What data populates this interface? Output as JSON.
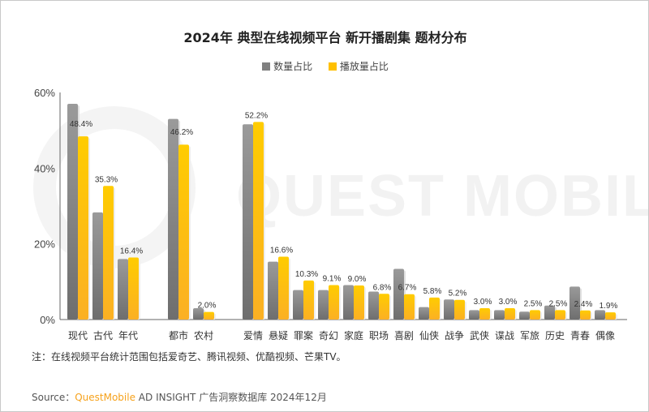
{
  "chart_data": {
    "type": "bar",
    "title": "2024年 典型在线视频平台 新开播剧集 题材分布",
    "ylim": [
      0,
      60
    ],
    "yticks": [
      "0%",
      "20%",
      "40%",
      "60%"
    ],
    "ytick_values": [
      0,
      20,
      40,
      60
    ],
    "legend_position": "top-center",
    "groups": [
      {
        "categories": [
          "现代",
          "古代",
          "年代"
        ]
      },
      {
        "categories": [
          "都市",
          "农村"
        ]
      },
      {
        "categories": [
          "爱情",
          "悬疑",
          "罪案",
          "奇幻",
          "家庭",
          "职场",
          "喜剧",
          "仙侠",
          "战争",
          "武侠",
          "谍战",
          "军旅",
          "历史",
          "青春",
          "偶像"
        ]
      }
    ],
    "categories": [
      "现代",
      "古代",
      "年代",
      "都市",
      "农村",
      "爱情",
      "悬疑",
      "罪案",
      "奇幻",
      "家庭",
      "职场",
      "喜剧",
      "仙侠",
      "战争",
      "武侠",
      "谍战",
      "军旅",
      "历史",
      "青春",
      "偶像"
    ],
    "series": [
      {
        "name": "数量占比",
        "color": "#808080",
        "values": [
          57.0,
          28.3,
          16.0,
          53.0,
          3.0,
          51.6,
          15.3,
          7.8,
          7.8,
          9.1,
          7.4,
          13.4,
          3.3,
          5.3,
          2.5,
          2.5,
          2.1,
          3.7,
          8.7,
          2.5
        ]
      },
      {
        "name": "播放量占比",
        "color": "#ffc000",
        "values": [
          48.4,
          35.3,
          16.4,
          46.2,
          2.0,
          52.2,
          16.6,
          10.3,
          9.1,
          9.0,
          6.8,
          6.7,
          5.8,
          5.2,
          3.0,
          3.0,
          2.5,
          2.5,
          2.4,
          1.9
        ],
        "labels": [
          "48.4%",
          "35.3%",
          "16.4%",
          "46.2%",
          "2.0%",
          "52.2%",
          "16.6%",
          "10.3%",
          "9.1%",
          "9.0%",
          "6.8%",
          "6.7%",
          "5.8%",
          "5.2%",
          "3.0%",
          "3.0%",
          "2.5%",
          "2.5%",
          "2.4%",
          "1.9%"
        ]
      }
    ]
  },
  "watermark": "QUEST MOBILE",
  "note": "注：在线视频平台统计范围包括爱奇艺、腾讯视频、优酷视频、芒果TV。",
  "source": {
    "prefix": "Source：",
    "brand": "QuestMobile",
    "rest": " AD INSIGHT 广告洞察数据库 2024年12月"
  }
}
